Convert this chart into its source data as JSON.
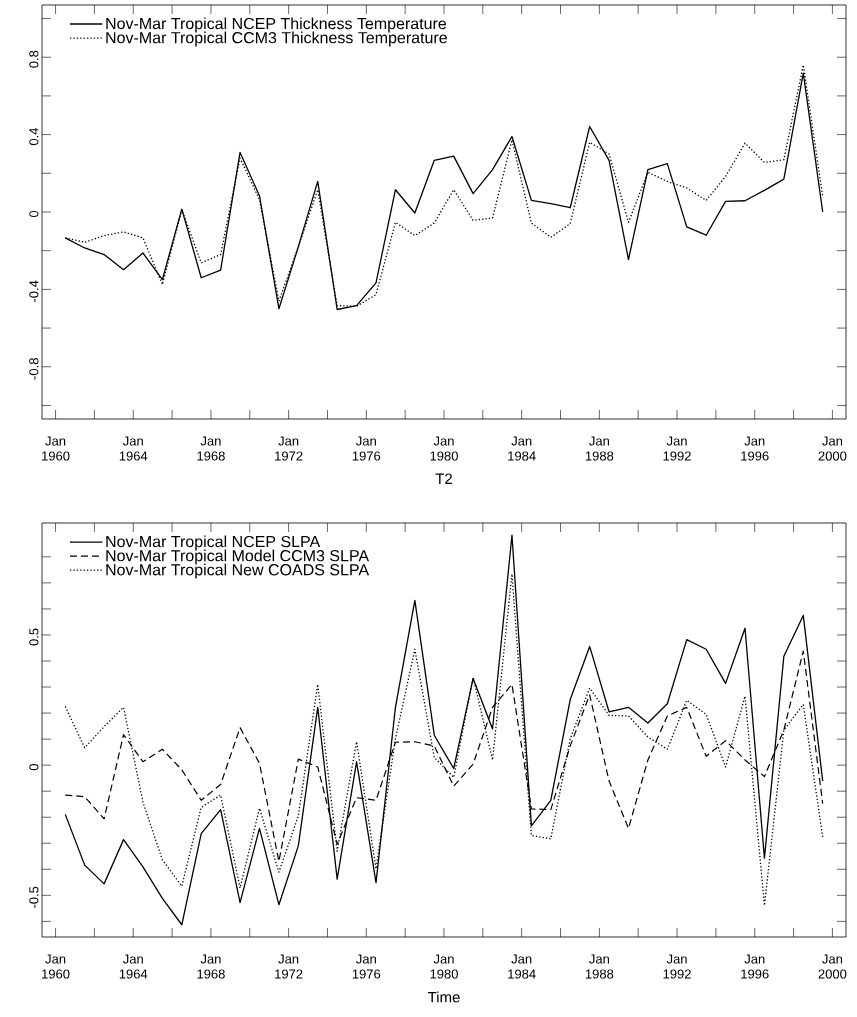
{
  "chart_data": [
    {
      "type": "line",
      "xlabel": "T2",
      "legend": "top left",
      "x": [
        "1960-07",
        "1961-07",
        "1962-07",
        "1963-07",
        "1964-07",
        "1965-07",
        "1966-07",
        "1967-07",
        "1968-07",
        "1969-07",
        "1970-07",
        "1971-07",
        "1972-07",
        "1973-07",
        "1974-07",
        "1975-07",
        "1976-07",
        "1977-07",
        "1978-07",
        "1979-07",
        "1980-07",
        "1981-07",
        "1982-07",
        "1983-07",
        "1984-07",
        "1985-07",
        "1986-07",
        "1987-07",
        "1988-07",
        "1989-07",
        "1990-07",
        "1991-07",
        "1992-07",
        "1993-07",
        "1994-07",
        "1995-07",
        "1996-07",
        "1997-07",
        "1998-07",
        "1999-07"
      ],
      "series": [
        {
          "name": "Nov-Mar Tropical NCEP Thickness Temperature",
          "color": "#000000",
          "line_style": "solid",
          "values": [
            -0.134,
            -0.186,
            -0.22,
            -0.298,
            -0.212,
            -0.35,
            0.015,
            -0.34,
            -0.3,
            0.308,
            0.084,
            -0.5,
            -0.18,
            0.158,
            -0.504,
            -0.484,
            -0.366,
            0.115,
            -0.005,
            0.267,
            0.289,
            0.095,
            0.219,
            0.39,
            0.06,
            0.043,
            0.022,
            0.442,
            0.267,
            -0.246,
            0.219,
            0.25,
            -0.077,
            -0.12,
            0.055,
            0.058,
            0.112,
            0.17,
            0.718,
            0.0
          ]
        },
        {
          "name": "Nov-Mar Tropical CCM3 Thickness Temperature",
          "color": "#000000",
          "line_style": "dotted",
          "values": [
            -0.134,
            -0.157,
            -0.122,
            -0.103,
            -0.134,
            -0.375,
            0.012,
            -0.263,
            -0.22,
            0.279,
            0.064,
            -0.46,
            -0.18,
            0.115,
            -0.484,
            -0.487,
            -0.427,
            -0.053,
            -0.122,
            -0.057,
            0.115,
            -0.043,
            -0.031,
            0.373,
            -0.057,
            -0.131,
            -0.06,
            0.36,
            0.3,
            -0.053,
            0.205,
            0.158,
            0.124,
            0.06,
            0.184,
            0.356,
            0.256,
            0.27,
            0.76,
            0.08
          ]
        }
      ],
      "xlim": [
        "1959-04-20",
        "2000-09-13"
      ],
      "ylim": [
        -1.07,
        1.07
      ],
      "xticks": [
        {
          "value": "1960-01",
          "label": "Jan 1960"
        },
        {
          "value": "1962-01",
          "label": null
        },
        {
          "value": "1964-01",
          "label": "Jan 1964"
        },
        {
          "value": "1966-01",
          "label": null
        },
        {
          "value": "1968-01",
          "label": "Jan 1968"
        },
        {
          "value": "1970-01",
          "label": null
        },
        {
          "value": "1972-01",
          "label": "Jan 1972"
        },
        {
          "value": "1974-01",
          "label": null
        },
        {
          "value": "1976-01",
          "label": "Jan 1976"
        },
        {
          "value": "1978-01",
          "label": null
        },
        {
          "value": "1980-01",
          "label": "Jan 1980"
        },
        {
          "value": "1982-01",
          "label": null
        },
        {
          "value": "1984-01",
          "label": "Jan 1984"
        },
        {
          "value": "1986-01",
          "label": null
        },
        {
          "value": "1988-01",
          "label": "Jan 1988"
        },
        {
          "value": "1990-01",
          "label": null
        },
        {
          "value": "1992-01",
          "label": "Jan 1992"
        },
        {
          "value": "1994-01",
          "label": null
        },
        {
          "value": "1996-01",
          "label": "Jan 1996"
        },
        {
          "value": "1998-01",
          "label": null
        },
        {
          "value": "2000-01",
          "label": "Jan 2000"
        }
      ],
      "yticks": [
        {
          "value": -1.0,
          "label": null
        },
        -0.8,
        {
          "value": -0.6,
          "label": null
        },
        -0.4,
        {
          "value": -0.2,
          "label": null
        },
        0,
        {
          "value": 0.2,
          "label": null
        },
        0.4,
        {
          "value": 0.6,
          "label": null
        },
        0.8,
        {
          "value": 1.0,
          "label": null
        }
      ]
    },
    {
      "type": "line",
      "xlabel": "Time",
      "legend": "top left",
      "x": [
        "1960-07",
        "1961-07",
        "1962-07",
        "1963-07",
        "1964-07",
        "1965-07",
        "1966-07",
        "1967-07",
        "1968-07",
        "1969-07",
        "1970-07",
        "1971-07",
        "1972-07",
        "1973-07",
        "1974-07",
        "1975-07",
        "1976-07",
        "1977-07",
        "1978-07",
        "1979-07",
        "1980-07",
        "1981-07",
        "1982-07",
        "1983-07",
        "1984-07",
        "1985-07",
        "1986-07",
        "1987-07",
        "1988-07",
        "1989-07",
        "1990-07",
        "1991-07",
        "1992-07",
        "1993-07",
        "1994-07",
        "1995-07",
        "1996-07",
        "1997-07",
        "1998-07",
        "1999-07"
      ],
      "series": [
        {
          "name": "Nov-Mar Tropical NCEP SLPA",
          "color": "#000000",
          "line_style": "solid",
          "values": [
            -0.189,
            -0.384,
            -0.456,
            -0.286,
            -0.391,
            -0.512,
            -0.613,
            -0.263,
            -0.171,
            -0.528,
            -0.243,
            -0.536,
            -0.31,
            0.222,
            -0.438,
            0.013,
            -0.451,
            0.222,
            0.633,
            0.115,
            -0.013,
            0.333,
            0.139,
            0.883,
            -0.233,
            -0.135,
            0.252,
            0.456,
            0.205,
            0.222,
            0.162,
            0.236,
            0.482,
            0.445,
            0.314,
            0.526,
            -0.357,
            0.418,
            0.575,
            -0.061
          ]
        },
        {
          "name": "Nov-Mar Tropical Model CCM3 SLPA",
          "color": "#000000",
          "line_style": "dashed",
          "values": [
            -0.115,
            -0.121,
            -0.206,
            0.117,
            0.013,
            0.061,
            -0.018,
            -0.135,
            -0.074,
            0.144,
            0.007,
            -0.37,
            0.023,
            -0.007,
            -0.303,
            -0.125,
            -0.135,
            0.088,
            0.09,
            0.074,
            -0.081,
            0.004,
            0.222,
            0.31,
            -0.168,
            -0.171,
            0.074,
            0.27,
            -0.061,
            -0.243,
            0.02,
            0.189,
            0.222,
            0.034,
            0.094,
            0.02,
            -0.044,
            0.135,
            0.438,
            -0.148
          ]
        },
        {
          "name": "Nov-Mar Tropical New COADS SLPA",
          "color": "#000000",
          "line_style": "dotted",
          "values": [
            0.225,
            0.067,
            0.148,
            0.222,
            -0.142,
            -0.364,
            -0.465,
            -0.162,
            -0.115,
            -0.472,
            -0.166,
            -0.411,
            -0.195,
            0.31,
            -0.33,
            0.09,
            -0.398,
            0.101,
            0.445,
            0.03,
            -0.047,
            0.337,
            0.02,
            0.734,
            -0.27,
            -0.283,
            0.101,
            0.296,
            0.191,
            0.189,
            0.108,
            0.061,
            0.249,
            0.195,
            -0.007,
            0.265,
            -0.539,
            0.135,
            0.233,
            -0.276
          ]
        }
      ],
      "xlim": [
        "1959-04-20",
        "2000-09-13"
      ],
      "ylim": [
        -0.66,
        0.93
      ],
      "xticks": [
        {
          "value": "1960-01",
          "label": "Jan 1960"
        },
        {
          "value": "1962-01",
          "label": null
        },
        {
          "value": "1964-01",
          "label": "Jan 1964"
        },
        {
          "value": "1966-01",
          "label": null
        },
        {
          "value": "1968-01",
          "label": "Jan 1968"
        },
        {
          "value": "1970-01",
          "label": null
        },
        {
          "value": "1972-01",
          "label": "Jan 1972"
        },
        {
          "value": "1974-01",
          "label": null
        },
        {
          "value": "1976-01",
          "label": "Jan 1976"
        },
        {
          "value": "1978-01",
          "label": null
        },
        {
          "value": "1980-01",
          "label": "Jan 1980"
        },
        {
          "value": "1982-01",
          "label": null
        },
        {
          "value": "1984-01",
          "label": "Jan 1984"
        },
        {
          "value": "1986-01",
          "label": null
        },
        {
          "value": "1988-01",
          "label": "Jan 1988"
        },
        {
          "value": "1990-01",
          "label": null
        },
        {
          "value": "1992-01",
          "label": "Jan 1992"
        },
        {
          "value": "1994-01",
          "label": null
        },
        {
          "value": "1996-01",
          "label": "Jan 1996"
        },
        {
          "value": "1998-01",
          "label": null
        },
        {
          "value": "2000-01",
          "label": "Jan 2000"
        }
      ],
      "yticks": [
        {
          "value": -0.6,
          "label": null
        },
        -0.5,
        {
          "value": -0.4,
          "label": null
        },
        {
          "value": -0.3,
          "label": null
        },
        {
          "value": -0.2,
          "label": null
        },
        {
          "value": -0.1,
          "label": null
        },
        0,
        {
          "value": 0.1,
          "label": null
        },
        {
          "value": 0.2,
          "label": null
        },
        {
          "value": 0.3,
          "label": null
        },
        {
          "value": 0.4,
          "label": null
        },
        0.5,
        {
          "value": 0.6,
          "label": null
        },
        {
          "value": 0.7,
          "label": null
        },
        {
          "value": 0.8,
          "label": null
        }
      ]
    }
  ]
}
